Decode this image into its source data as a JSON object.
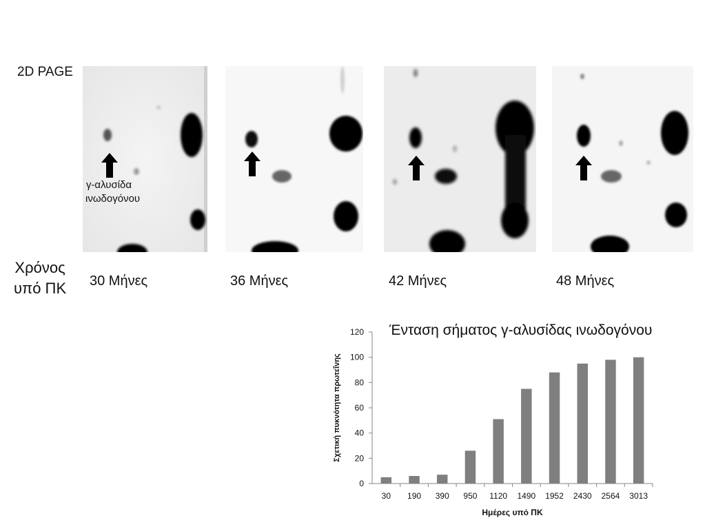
{
  "figure": {
    "gel_title": "2D PAGE",
    "time_label_line1": "Χρόνος",
    "time_label_line2": "υπό ΠΚ",
    "annotation_line1": "γ-αλυσίδα",
    "annotation_line2": "ινωδογόνου",
    "panels": [
      {
        "label": "30 Μήνες"
      },
      {
        "label": "36 Μήνες"
      },
      {
        "label": "42 Μήνες"
      },
      {
        "label": "48 Μήνες"
      }
    ]
  },
  "chart_data": {
    "type": "bar",
    "title": "Ένταση σήματος γ-αλυσίδας ινωδογόνου",
    "xlabel": "Ημέρες υπό ΠΚ",
    "ylabel": "Σχετική πυκνότητα πρωτεΐνης",
    "categories": [
      "30",
      "190",
      "390",
      "950",
      "1120",
      "1490",
      "1952",
      "2430",
      "2564",
      "3013"
    ],
    "values": [
      5,
      6,
      7,
      26,
      51,
      75,
      88,
      95,
      98,
      100
    ],
    "ylim": [
      0,
      120
    ],
    "yticks": [
      0,
      20,
      40,
      60,
      80,
      100,
      120
    ],
    "bar_color": "#7f7f7f",
    "grid": false,
    "legend": "none"
  }
}
